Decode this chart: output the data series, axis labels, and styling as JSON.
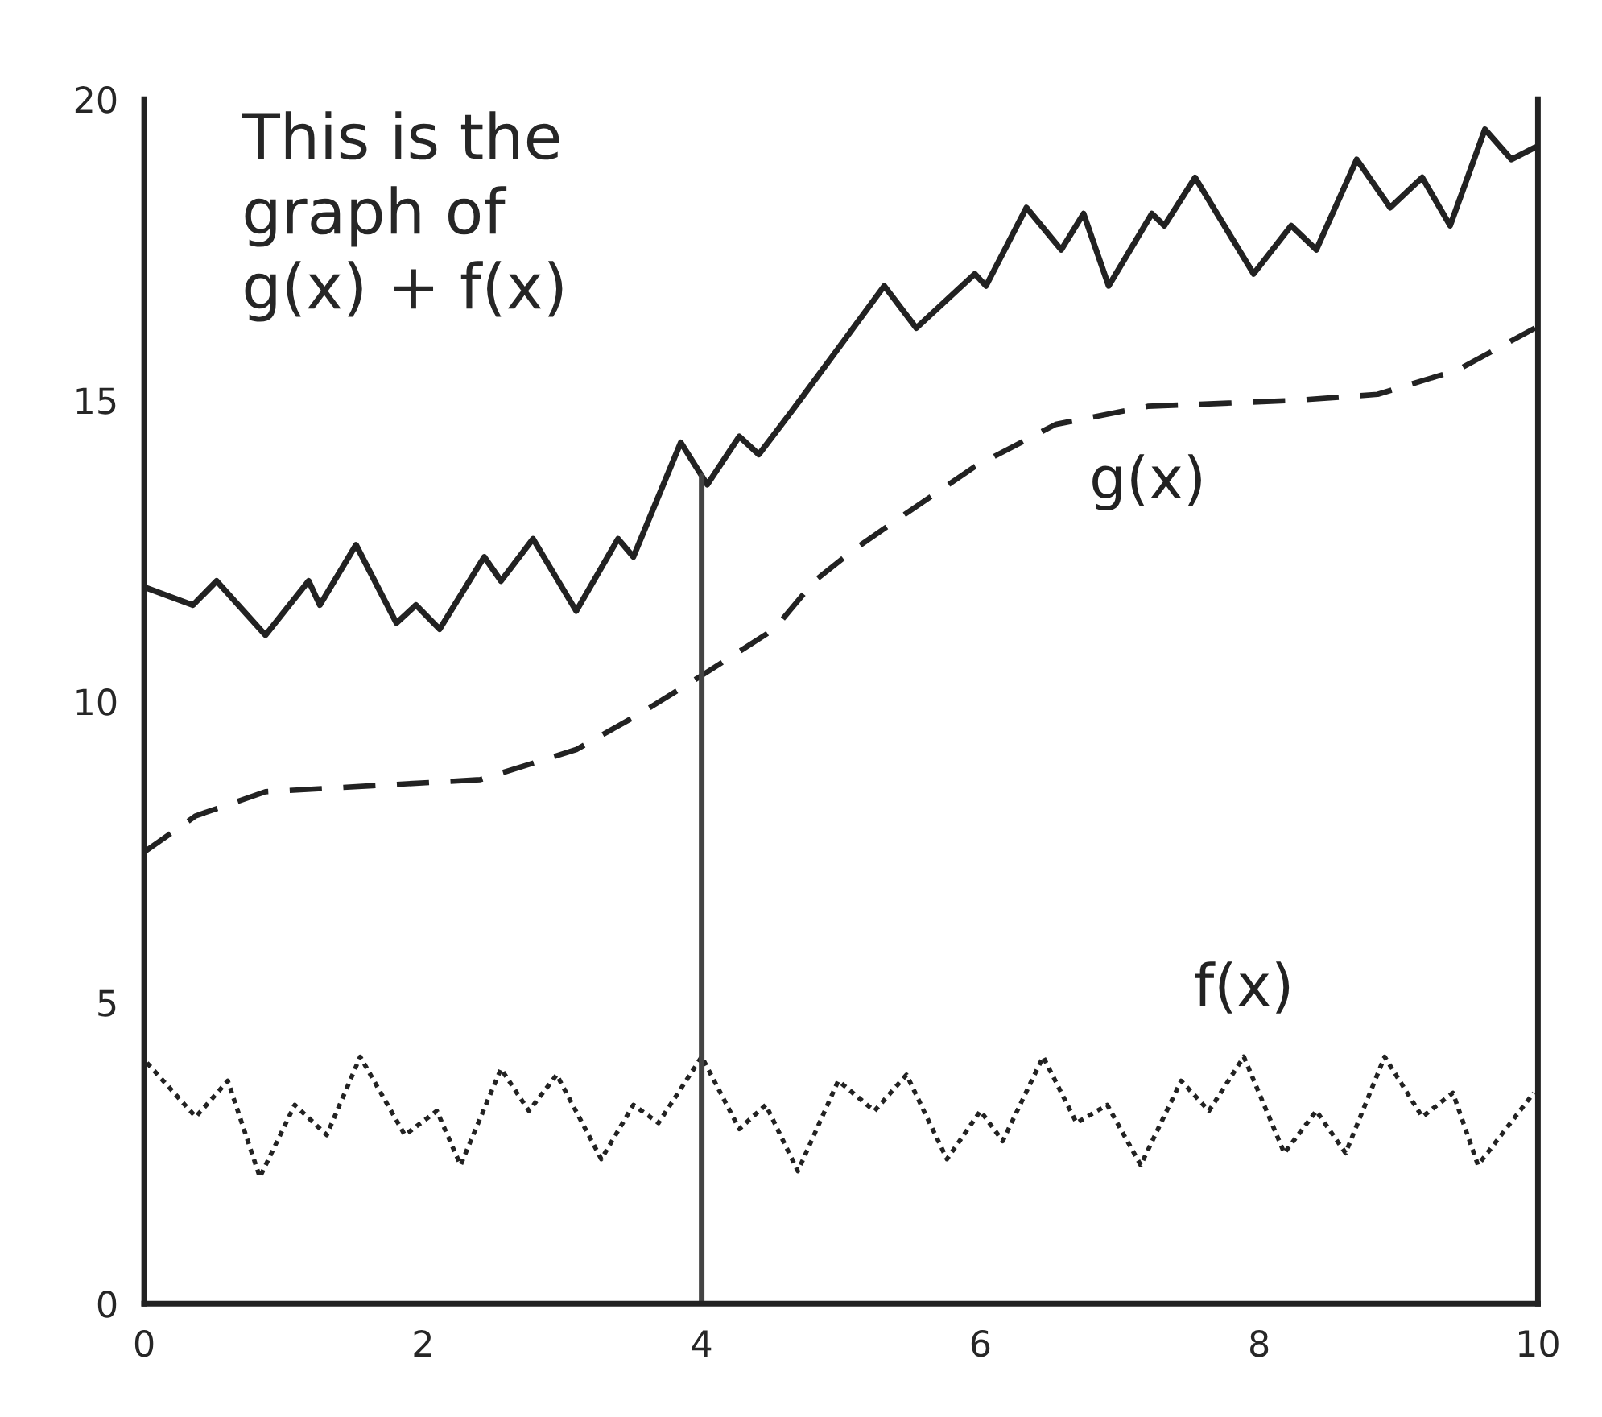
{
  "chart_data": {
    "type": "line",
    "annotations": [
      "This is the\ngraph of\ng(x) + f(x)"
    ],
    "xlim": [
      0,
      10
    ],
    "ylim": [
      0,
      20
    ],
    "xticks": [
      0,
      2,
      4,
      6,
      8,
      10
    ],
    "yticks": [
      0,
      5,
      10,
      15,
      20
    ],
    "grid": false,
    "legend": false,
    "ref_lines": [
      {
        "axis": "x",
        "value": 4,
        "label": null,
        "color": "#444444",
        "line_style": "solid"
      }
    ],
    "series": [
      {
        "color": "#222222",
        "line_style": "solid",
        "x": [
          0,
          0.35,
          0.52,
          0.87,
          1.18,
          1.26,
          1.52,
          1.81,
          1.95,
          2.12,
          2.44,
          2.56,
          2.79,
          3.1,
          3.4,
          3.51,
          3.85,
          4.04,
          4.27,
          4.41,
          4.64,
          4.96,
          5.31,
          5.54,
          5.96,
          6.04,
          6.33,
          6.58,
          6.74,
          6.92,
          7.23,
          7.32,
          7.54,
          7.96,
          8.23,
          8.41,
          8.7,
          8.94,
          9.17,
          9.37,
          9.62,
          9.81,
          9.98
        ],
        "values": [
          11.9,
          11.6,
          12.0,
          11.1,
          12.0,
          11.6,
          12.6,
          11.3,
          11.6,
          11.2,
          12.4,
          12.0,
          12.7,
          11.5,
          12.7,
          12.4,
          14.3,
          13.6,
          14.4,
          14.1,
          14.8,
          15.8,
          16.9,
          16.2,
          17.1,
          16.9,
          18.2,
          17.5,
          18.1,
          16.9,
          18.1,
          17.9,
          18.7,
          17.1,
          17.9,
          17.5,
          19.0,
          18.2,
          18.7,
          17.9,
          19.5,
          19.0,
          19.2
        ]
      },
      {
        "name": "g(x)",
        "color": "#222222",
        "line_style": "dashed",
        "x": [
          0,
          0.37,
          0.87,
          1.64,
          2.41,
          3.1,
          3.56,
          3.98,
          4.52,
          4.81,
          5.08,
          5.39,
          5.96,
          6.54,
          7.2,
          8.27,
          8.85,
          9.42,
          9.98
        ],
        "values": [
          7.5,
          8.1,
          8.5,
          8.6,
          8.7,
          9.2,
          9.8,
          10.4,
          11.2,
          12.0,
          12.5,
          13.0,
          13.9,
          14.6,
          14.9,
          15.0,
          15.1,
          15.5,
          16.2
        ]
      },
      {
        "name": "f(x)",
        "color": "#222222",
        "line_style": "dotted",
        "x": [
          0.02,
          0.37,
          0.6,
          0.83,
          1.08,
          1.31,
          1.55,
          1.87,
          2.1,
          2.27,
          2.56,
          2.76,
          2.96,
          3.28,
          3.51,
          3.69,
          4.0,
          4.27,
          4.46,
          4.69,
          4.98,
          5.24,
          5.47,
          5.76,
          6.0,
          6.16,
          6.45,
          6.69,
          6.91,
          7.15,
          7.44,
          7.64,
          7.89,
          8.18,
          8.41,
          8.62,
          8.9,
          9.17,
          9.39,
          9.57,
          9.97
        ],
        "values": [
          4.0,
          3.1,
          3.7,
          2.1,
          3.3,
          2.8,
          4.1,
          2.8,
          3.2,
          2.3,
          3.9,
          3.2,
          3.8,
          2.4,
          3.3,
          3.0,
          4.1,
          2.9,
          3.3,
          2.2,
          3.7,
          3.2,
          3.8,
          2.4,
          3.2,
          2.7,
          4.1,
          3.0,
          3.3,
          2.3,
          3.7,
          3.2,
          4.1,
          2.5,
          3.2,
          2.5,
          4.1,
          3.1,
          3.5,
          2.3,
          3.5
        ]
      }
    ]
  }
}
